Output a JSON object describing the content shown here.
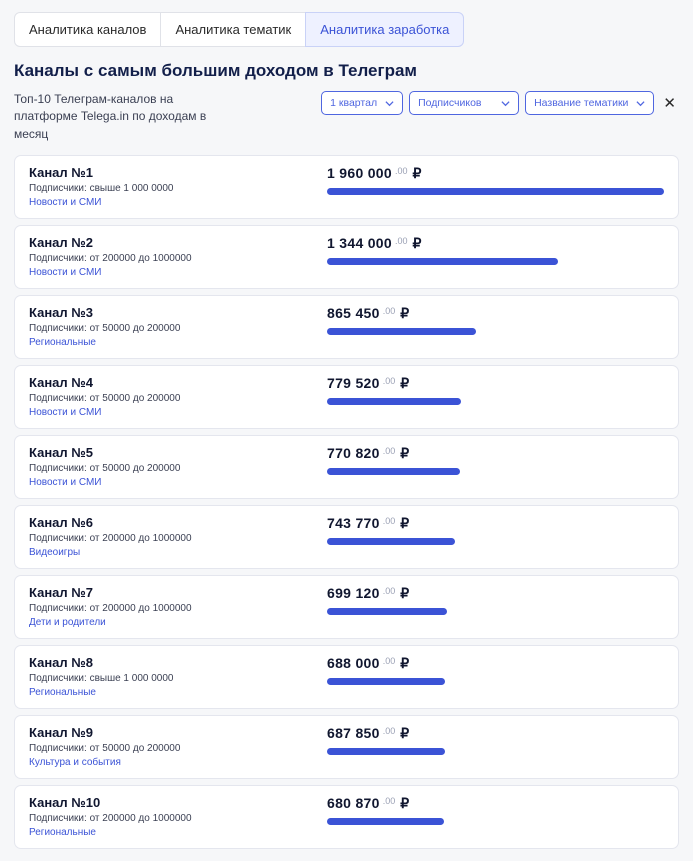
{
  "colors": {
    "accent": "#3b53d6",
    "bar": "#3b53d6",
    "tab_active_bg": "#eef1ff",
    "card_border": "#e4e6ee",
    "text_dark": "#10162f",
    "text_muted": "#3a3f52",
    "dec_muted": "#9aa0b4",
    "page_bg": "#f6f7f9"
  },
  "tabs": [
    {
      "label": "Аналитика каналов",
      "active": false
    },
    {
      "label": "Аналитика тематик",
      "active": false
    },
    {
      "label": "Аналитика заработка",
      "active": true
    }
  ],
  "page_title": "Каналы с самым большим доходом в Телеграм",
  "subtitle": "Топ-10 Телеграм-каналов на платформе Telega.in по доходам в месяц",
  "filters": {
    "period": "1 квартал",
    "subscribers": "Подписчиков",
    "category": "Название тематики"
  },
  "currency": "₽",
  "bar_max_value": 1960000,
  "channels": [
    {
      "name": "Канал №1",
      "subs": "Подписчики: свыше 1 000 0000",
      "category": "Новости и СМИ",
      "amount_main": "1 960 000",
      "amount_dec": ".00",
      "value": 1960000
    },
    {
      "name": "Канал №2",
      "subs": "Подписчики: от 200000 до 1000000",
      "category": "Новости и СМИ",
      "amount_main": "1 344 000",
      "amount_dec": ".00",
      "value": 1344000
    },
    {
      "name": "Канал №3",
      "subs": "Подписчики: от 50000 до 200000",
      "category": "Региональные",
      "amount_main": "865 450",
      "amount_dec": ".00",
      "value": 865450
    },
    {
      "name": "Канал №4",
      "subs": "Подписчики: от 50000 до 200000",
      "category": "Новости и СМИ",
      "amount_main": "779 520",
      "amount_dec": ".00",
      "value": 779520
    },
    {
      "name": "Канал №5",
      "subs": "Подписчики: от 50000 до 200000",
      "category": "Новости и СМИ",
      "amount_main": "770 820",
      "amount_dec": ".00",
      "value": 770820
    },
    {
      "name": "Канал №6",
      "subs": "Подписчики: от 200000 до 1000000",
      "category": "Видеоигры",
      "amount_main": "743 770",
      "amount_dec": ".00",
      "value": 743770
    },
    {
      "name": "Канал №7",
      "subs": "Подписчики: от 200000 до 1000000",
      "category": "Дети и родители",
      "amount_main": "699 120",
      "amount_dec": ".00",
      "value": 699120
    },
    {
      "name": "Канал №8",
      "subs": "Подписчики: свыше 1 000 0000",
      "category": "Региональные",
      "amount_main": "688 000",
      "amount_dec": ".00",
      "value": 688000
    },
    {
      "name": "Канал №9",
      "subs": "Подписчики: от 50000 до 200000",
      "category": "Культура и события",
      "amount_main": "687 850",
      "amount_dec": ".00",
      "value": 687850
    },
    {
      "name": "Канал №10",
      "subs": "Подписчики: от 200000 до 1000000",
      "category": "Региональные",
      "amount_main": "680 870",
      "amount_dec": ".00",
      "value": 680870
    }
  ]
}
